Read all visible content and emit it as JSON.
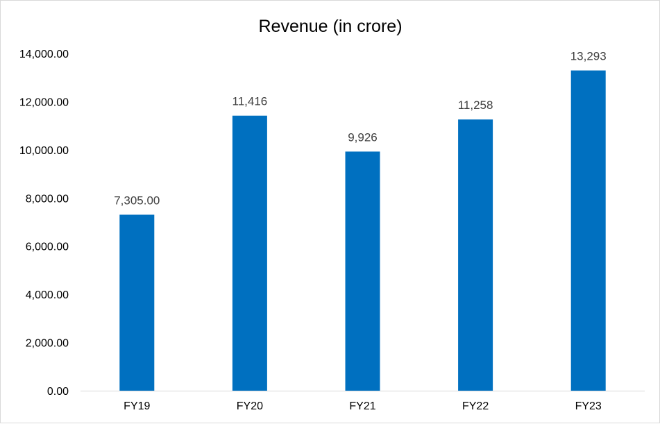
{
  "chart_data": {
    "type": "bar",
    "title": "Revenue  (in crore)",
    "categories": [
      "FY19",
      "FY20",
      "FY21",
      "FY22",
      "FY23"
    ],
    "values": [
      7305,
      11416,
      9926,
      11258,
      13293
    ],
    "data_labels": [
      "7,305.00",
      "11,416",
      "9,926",
      "11,258",
      "13,293"
    ],
    "y_ticks": [
      0,
      2000,
      4000,
      6000,
      8000,
      10000,
      12000,
      14000
    ],
    "y_tick_labels": [
      "0.00",
      "2,000.00",
      "4,000.00",
      "6,000.00",
      "8,000.00",
      "10,000.00",
      "12,000.00",
      "14,000.00"
    ],
    "ylim": [
      0,
      14000
    ],
    "xlabel": "",
    "ylabel": "",
    "grid": false,
    "legend": "none",
    "bar_color": "#0070C0",
    "axis_color": "#d9d9d9"
  }
}
